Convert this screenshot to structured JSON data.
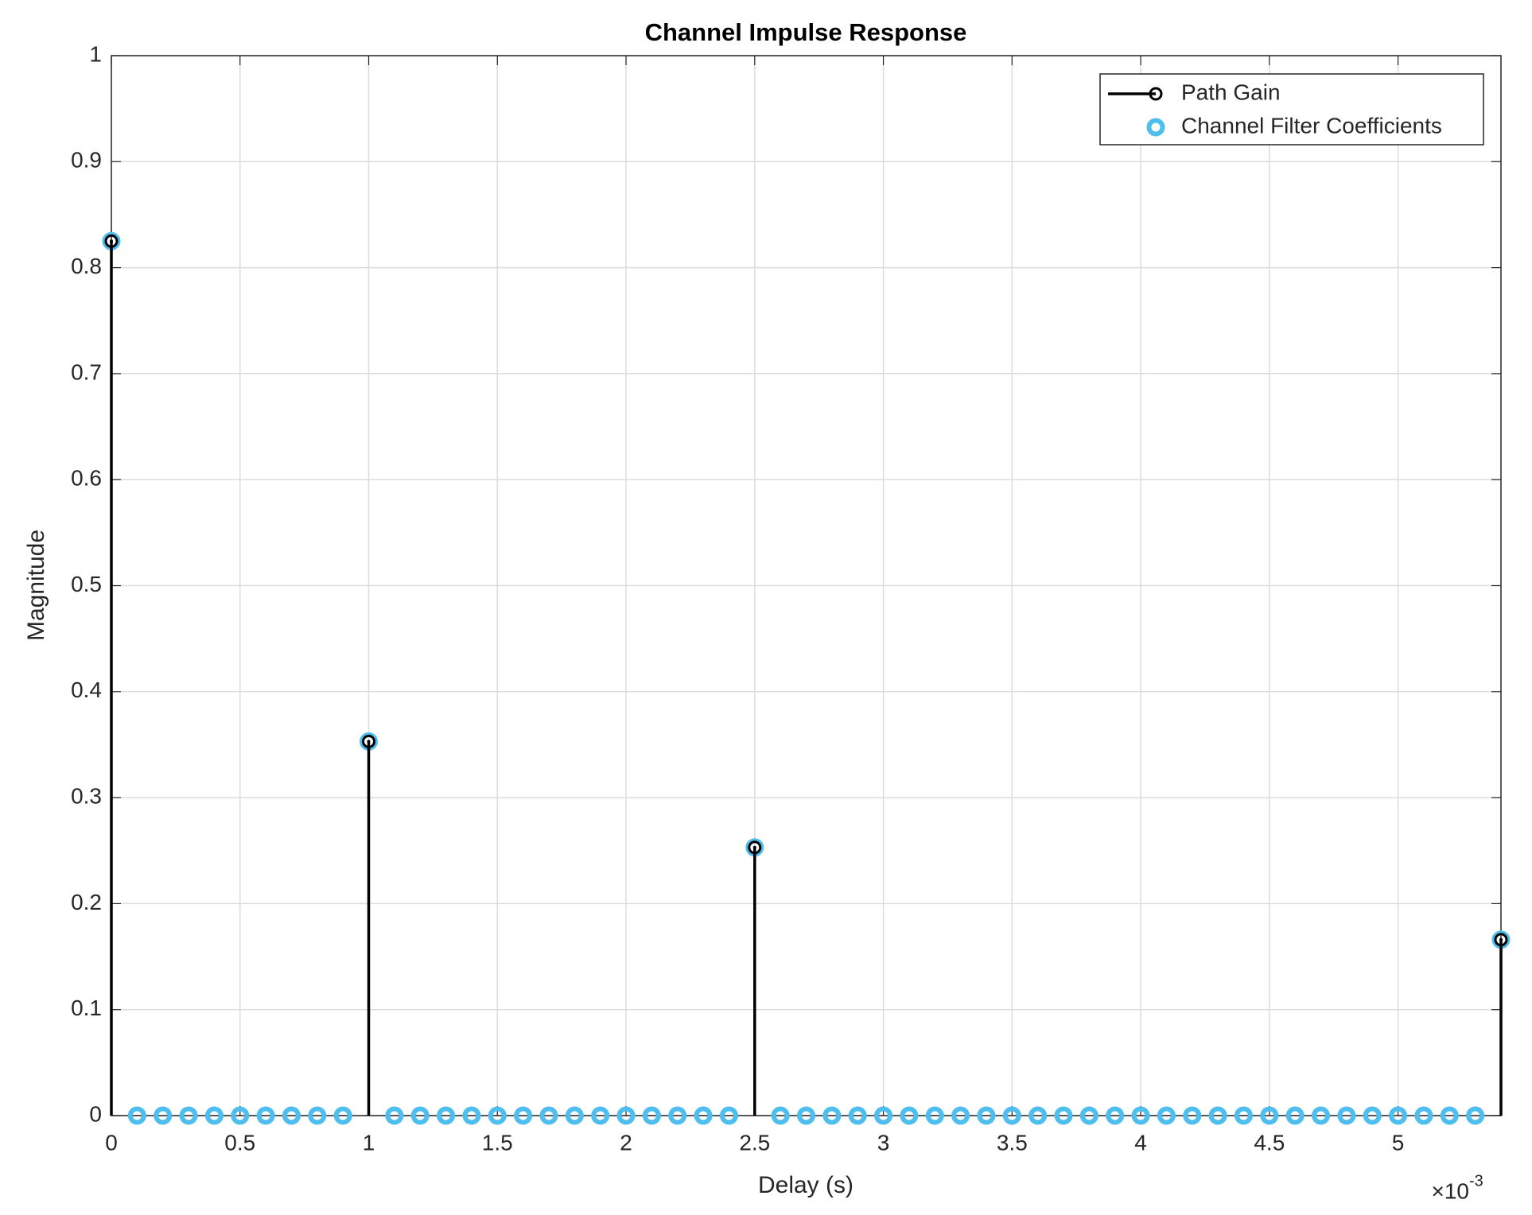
{
  "chart_data": {
    "type": "stem",
    "title": "Channel Impulse Response",
    "x_label": "Delay (s)",
    "y_label": "Magnitude",
    "x_multiplier": "×10",
    "x_exponent": "-3",
    "xlim": [
      0,
      5.4
    ],
    "xticks": [
      0,
      0.5,
      1,
      1.5,
      2,
      2.5,
      3,
      3.5,
      4,
      4.5,
      5
    ],
    "ylim": [
      0,
      1
    ],
    "yticks": [
      0,
      0.1,
      0.2,
      0.3,
      0.4,
      0.5,
      0.6,
      0.7,
      0.8,
      0.9,
      1
    ],
    "grid": true,
    "legend": "northeast",
    "series": [
      {
        "name": "Path Gain",
        "color": "#000000",
        "stem": true,
        "x": [
          0,
          1,
          2.5,
          5.4
        ],
        "values": [
          0.825,
          0.353,
          0.253,
          0.166
        ]
      },
      {
        "name": "Channel Filter Coefficients",
        "color": "#4DBEEE",
        "stem": false,
        "x": [
          0,
          0.1,
          0.2,
          0.3,
          0.4,
          0.5,
          0.6,
          0.7,
          0.8,
          0.9,
          1,
          1.1,
          1.2,
          1.3,
          1.4,
          1.5,
          1.6,
          1.7,
          1.8,
          1.9,
          2,
          2.1,
          2.2,
          2.3,
          2.4,
          2.5,
          2.6,
          2.7,
          2.8,
          2.9,
          3,
          3.1,
          3.2,
          3.3,
          3.4,
          3.5,
          3.6,
          3.7,
          3.8,
          3.9,
          4,
          4.1,
          4.2,
          4.3,
          4.4,
          4.5,
          4.6,
          4.7,
          4.8,
          4.9,
          5,
          5.1,
          5.2,
          5.3,
          5.4
        ],
        "values": [
          0.825,
          0,
          0,
          0,
          0,
          0,
          0,
          0,
          0,
          0,
          0.353,
          0,
          0,
          0,
          0,
          0,
          0,
          0,
          0,
          0,
          0,
          0,
          0,
          0,
          0,
          0.253,
          0,
          0,
          0,
          0,
          0,
          0,
          0,
          0,
          0,
          0,
          0,
          0,
          0,
          0,
          0,
          0,
          0,
          0,
          0,
          0,
          0,
          0,
          0,
          0,
          0,
          0,
          0,
          0,
          0.166
        ]
      }
    ]
  }
}
